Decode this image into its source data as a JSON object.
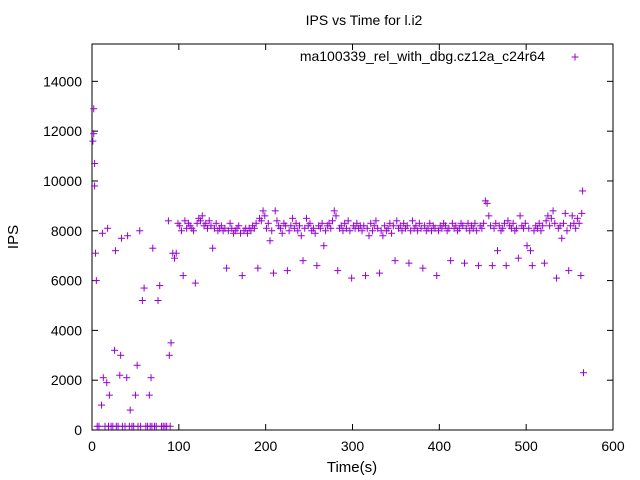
{
  "chart_data": {
    "type": "scatter",
    "title": "IPS vs Time for l.i2",
    "xlabel": "Time(s)",
    "ylabel": "IPS",
    "xlim": [
      0,
      600
    ],
    "ylim": [
      0,
      15500
    ],
    "xticks": [
      0,
      100,
      200,
      300,
      400,
      500,
      600
    ],
    "yticks": [
      0,
      2000,
      4000,
      6000,
      8000,
      10000,
      12000,
      14000
    ],
    "grid": false,
    "legend_position": "top-right",
    "marker": "+",
    "color": "#9400d3",
    "series": [
      {
        "name": "ma100339_rel_with_dbg.cz12a_c24r64",
        "points": [
          [
            1,
            11600
          ],
          [
            2,
            11900
          ],
          [
            2,
            12900
          ],
          [
            3,
            10700
          ],
          [
            3,
            9800
          ],
          [
            4,
            7100
          ],
          [
            5,
            6000
          ],
          [
            6,
            150
          ],
          [
            8,
            150
          ],
          [
            11,
            1000
          ],
          [
            12,
            7900
          ],
          [
            13,
            2100
          ],
          [
            15,
            150
          ],
          [
            17,
            1900
          ],
          [
            18,
            8100
          ],
          [
            19,
            150
          ],
          [
            20,
            1400
          ],
          [
            22,
            150
          ],
          [
            24,
            150
          ],
          [
            26,
            3200
          ],
          [
            27,
            7200
          ],
          [
            28,
            150
          ],
          [
            30,
            150
          ],
          [
            32,
            2200
          ],
          [
            33,
            3000
          ],
          [
            34,
            7700
          ],
          [
            35,
            150
          ],
          [
            38,
            150
          ],
          [
            40,
            2100
          ],
          [
            41,
            7800
          ],
          [
            43,
            150
          ],
          [
            44,
            800
          ],
          [
            46,
            150
          ],
          [
            48,
            150
          ],
          [
            50,
            1400
          ],
          [
            52,
            2600
          ],
          [
            53,
            150
          ],
          [
            55,
            8000
          ],
          [
            56,
            150
          ],
          [
            58,
            5200
          ],
          [
            60,
            5700
          ],
          [
            62,
            150
          ],
          [
            64,
            150
          ],
          [
            66,
            1400
          ],
          [
            67,
            150
          ],
          [
            68,
            2100
          ],
          [
            69,
            150
          ],
          [
            70,
            7300
          ],
          [
            72,
            150
          ],
          [
            74,
            150
          ],
          [
            76,
            5200
          ],
          [
            78,
            5800
          ],
          [
            80,
            150
          ],
          [
            82,
            150
          ],
          [
            84,
            150
          ],
          [
            86,
            150
          ],
          [
            88,
            8400
          ],
          [
            89,
            3000
          ],
          [
            90,
            150
          ],
          [
            91,
            3500
          ],
          [
            93,
            7100
          ],
          [
            95,
            6900
          ],
          [
            97,
            7100
          ],
          [
            99,
            8300
          ],
          [
            101,
            8200
          ],
          [
            103,
            8000
          ],
          [
            105,
            6200
          ],
          [
            107,
            8400
          ],
          [
            109,
            8100
          ],
          [
            111,
            8300
          ],
          [
            113,
            8200
          ],
          [
            115,
            8100
          ],
          [
            117,
            8000
          ],
          [
            119,
            5900
          ],
          [
            121,
            8300
          ],
          [
            123,
            8500
          ],
          [
            125,
            8400
          ],
          [
            127,
            8600
          ],
          [
            129,
            8200
          ],
          [
            131,
            8300
          ],
          [
            133,
            8100
          ],
          [
            135,
            8400
          ],
          [
            137,
            8200
          ],
          [
            139,
            7300
          ],
          [
            141,
            8100
          ],
          [
            143,
            8300
          ],
          [
            145,
            8000
          ],
          [
            147,
            8100
          ],
          [
            149,
            8200
          ],
          [
            151,
            8000
          ],
          [
            153,
            8100
          ],
          [
            155,
            6500
          ],
          [
            157,
            8000
          ],
          [
            159,
            8300
          ],
          [
            161,
            8100
          ],
          [
            163,
            7900
          ],
          [
            165,
            8000
          ],
          [
            167,
            8100
          ],
          [
            169,
            8200
          ],
          [
            171,
            7900
          ],
          [
            173,
            6200
          ],
          [
            175,
            8000
          ],
          [
            177,
            8100
          ],
          [
            179,
            7900
          ],
          [
            181,
            8100
          ],
          [
            183,
            8000
          ],
          [
            185,
            8200
          ],
          [
            187,
            8100
          ],
          [
            189,
            8300
          ],
          [
            191,
            6500
          ],
          [
            193,
            8500
          ],
          [
            195,
            8400
          ],
          [
            197,
            8800
          ],
          [
            199,
            8600
          ],
          [
            201,
            8100
          ],
          [
            203,
            8300
          ],
          [
            205,
            7600
          ],
          [
            207,
            8000
          ],
          [
            209,
            6300
          ],
          [
            211,
            8800
          ],
          [
            213,
            8400
          ],
          [
            215,
            8200
          ],
          [
            217,
            8100
          ],
          [
            219,
            7900
          ],
          [
            221,
            8300
          ],
          [
            223,
            8200
          ],
          [
            225,
            6400
          ],
          [
            227,
            8000
          ],
          [
            229,
            8200
          ],
          [
            231,
            8500
          ],
          [
            233,
            8100
          ],
          [
            235,
            8300
          ],
          [
            237,
            8000
          ],
          [
            239,
            8200
          ],
          [
            241,
            7800
          ],
          [
            243,
            6800
          ],
          [
            245,
            8100
          ],
          [
            247,
            8500
          ],
          [
            249,
            8200
          ],
          [
            251,
            8300
          ],
          [
            253,
            8000
          ],
          [
            255,
            8100
          ],
          [
            257,
            7900
          ],
          [
            259,
            6600
          ],
          [
            261,
            8200
          ],
          [
            263,
            8100
          ],
          [
            265,
            8300
          ],
          [
            267,
            7400
          ],
          [
            269,
            8000
          ],
          [
            271,
            8200
          ],
          [
            273,
            8300
          ],
          [
            275,
            8100
          ],
          [
            277,
            8400
          ],
          [
            279,
            8800
          ],
          [
            281,
            8600
          ],
          [
            283,
            6400
          ],
          [
            285,
            8100
          ],
          [
            287,
            8200
          ],
          [
            289,
            8000
          ],
          [
            291,
            8300
          ],
          [
            293,
            8100
          ],
          [
            295,
            8400
          ],
          [
            297,
            8000
          ],
          [
            299,
            6100
          ],
          [
            301,
            8200
          ],
          [
            303,
            8100
          ],
          [
            305,
            8300
          ],
          [
            307,
            8100
          ],
          [
            309,
            8200
          ],
          [
            311,
            8000
          ],
          [
            313,
            8200
          ],
          [
            315,
            6200
          ],
          [
            317,
            8100
          ],
          [
            319,
            7800
          ],
          [
            321,
            8300
          ],
          [
            323,
            8000
          ],
          [
            325,
            8200
          ],
          [
            327,
            8400
          ],
          [
            329,
            8100
          ],
          [
            331,
            6300
          ],
          [
            333,
            8000
          ],
          [
            335,
            7800
          ],
          [
            337,
            8200
          ],
          [
            339,
            8000
          ],
          [
            341,
            8100
          ],
          [
            343,
            8300
          ],
          [
            345,
            7900
          ],
          [
            347,
            8200
          ],
          [
            349,
            6800
          ],
          [
            351,
            8400
          ],
          [
            353,
            8100
          ],
          [
            355,
            8200
          ],
          [
            357,
            8000
          ],
          [
            359,
            8300
          ],
          [
            361,
            8100
          ],
          [
            363,
            8200
          ],
          [
            365,
            6700
          ],
          [
            367,
            8000
          ],
          [
            369,
            8400
          ],
          [
            371,
            8100
          ],
          [
            373,
            8200
          ],
          [
            375,
            8000
          ],
          [
            377,
            8300
          ],
          [
            379,
            8100
          ],
          [
            381,
            6500
          ],
          [
            383,
            8200
          ],
          [
            385,
            8000
          ],
          [
            387,
            8100
          ],
          [
            389,
            8300
          ],
          [
            391,
            8000
          ],
          [
            393,
            8200
          ],
          [
            395,
            8100
          ],
          [
            397,
            6200
          ],
          [
            399,
            8000
          ],
          [
            401,
            8200
          ],
          [
            403,
            8100
          ],
          [
            405,
            8300
          ],
          [
            407,
            8200
          ],
          [
            409,
            8000
          ],
          [
            411,
            8100
          ],
          [
            413,
            6800
          ],
          [
            415,
            8300
          ],
          [
            417,
            8100
          ],
          [
            419,
            8200
          ],
          [
            421,
            8000
          ],
          [
            423,
            8100
          ],
          [
            425,
            8300
          ],
          [
            427,
            8200
          ],
          [
            429,
            6700
          ],
          [
            431,
            8100
          ],
          [
            433,
            8300
          ],
          [
            435,
            8000
          ],
          [
            437,
            8200
          ],
          [
            439,
            8100
          ],
          [
            441,
            8300
          ],
          [
            443,
            8000
          ],
          [
            445,
            6600
          ],
          [
            447,
            8200
          ],
          [
            449,
            8100
          ],
          [
            451,
            8300
          ],
          [
            453,
            9200
          ],
          [
            455,
            9100
          ],
          [
            457,
            8600
          ],
          [
            459,
            8200
          ],
          [
            461,
            6600
          ],
          [
            463,
            8100
          ],
          [
            465,
            8300
          ],
          [
            467,
            7200
          ],
          [
            469,
            8200
          ],
          [
            471,
            8000
          ],
          [
            473,
            8100
          ],
          [
            475,
            8300
          ],
          [
            477,
            6600
          ],
          [
            479,
            8400
          ],
          [
            481,
            8200
          ],
          [
            483,
            8100
          ],
          [
            485,
            8300
          ],
          [
            487,
            8000
          ],
          [
            489,
            8100
          ],
          [
            491,
            6900
          ],
          [
            493,
            8600
          ],
          [
            495,
            8200
          ],
          [
            497,
            8100
          ],
          [
            499,
            8300
          ],
          [
            501,
            7400
          ],
          [
            503,
            8100
          ],
          [
            505,
            7200
          ],
          [
            507,
            6600
          ],
          [
            509,
            8000
          ],
          [
            511,
            8200
          ],
          [
            513,
            8100
          ],
          [
            515,
            8300
          ],
          [
            517,
            8000
          ],
          [
            519,
            8200
          ],
          [
            521,
            6700
          ],
          [
            523,
            8400
          ],
          [
            525,
            8600
          ],
          [
            527,
            8200
          ],
          [
            529,
            8500
          ],
          [
            531,
            8800
          ],
          [
            533,
            8300
          ],
          [
            535,
            6100
          ],
          [
            537,
            8100
          ],
          [
            539,
            8200
          ],
          [
            541,
            7700
          ],
          [
            543,
            8300
          ],
          [
            545,
            8700
          ],
          [
            547,
            8000
          ],
          [
            549,
            6400
          ],
          [
            551,
            8200
          ],
          [
            553,
            8600
          ],
          [
            555,
            8300
          ],
          [
            557,
            8100
          ],
          [
            559,
            8500
          ],
          [
            561,
            8300
          ],
          [
            563,
            6200
          ],
          [
            564,
            8700
          ],
          [
            565,
            9600
          ],
          [
            566,
            2300
          ]
        ]
      }
    ]
  }
}
